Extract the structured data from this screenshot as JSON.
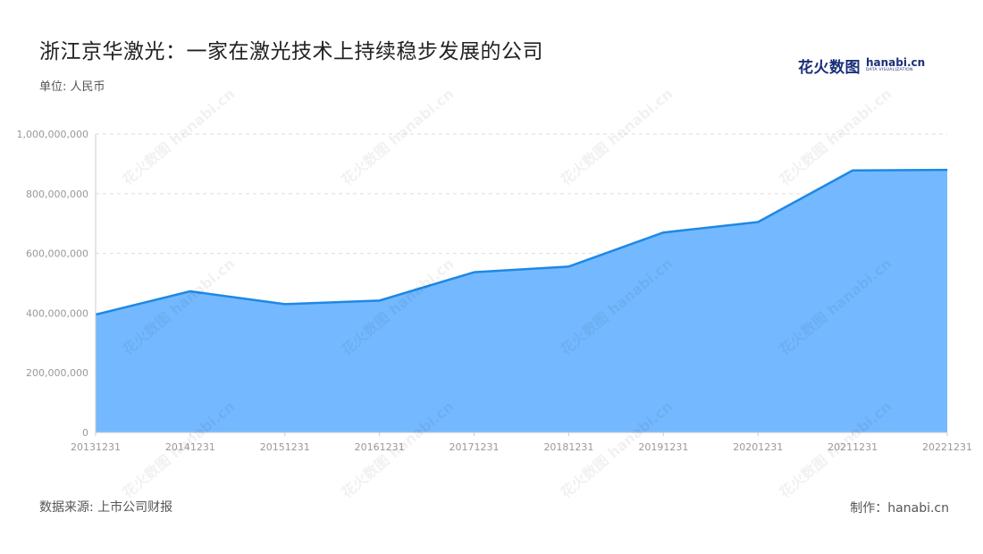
{
  "title": "浙江京华激光：一家在激光技术上持续稳步发展的公司",
  "unit_label": "单位: 人民币",
  "source_label": "数据来源: 上市公司财报",
  "credit_label": "制作：hanabi.cn",
  "logo": {
    "cn": "花火数图",
    "en": "hanabi.cn",
    "en_sub": "DATA VISUALIZATION"
  },
  "watermark_text": "花火数图 hanabi.cn",
  "colors": {
    "fill": "#74b9ff",
    "line": "#1e88e5",
    "grid": "#dddddd",
    "axis_text": "#999999"
  },
  "chart_data": {
    "type": "area",
    "x": [
      "20131231",
      "20141231",
      "20151231",
      "20161231",
      "20171231",
      "20181231",
      "20191231",
      "20201231",
      "20211231",
      "20221231"
    ],
    "series": [
      {
        "values": [
          395000000,
          473000000,
          430000000,
          442000000,
          537000000,
          556000000,
          670000000,
          705000000,
          878000000,
          880000000
        ]
      }
    ],
    "ylim": [
      0,
      1000000000
    ],
    "yticks": [
      0,
      200000000,
      400000000,
      600000000,
      800000000,
      1000000000
    ],
    "ytick_labels": [
      "0",
      "200,000,000",
      "400,000,000",
      "600,000,000",
      "800,000,000",
      "1,000,000,000"
    ],
    "grid": true,
    "legend": "none"
  }
}
